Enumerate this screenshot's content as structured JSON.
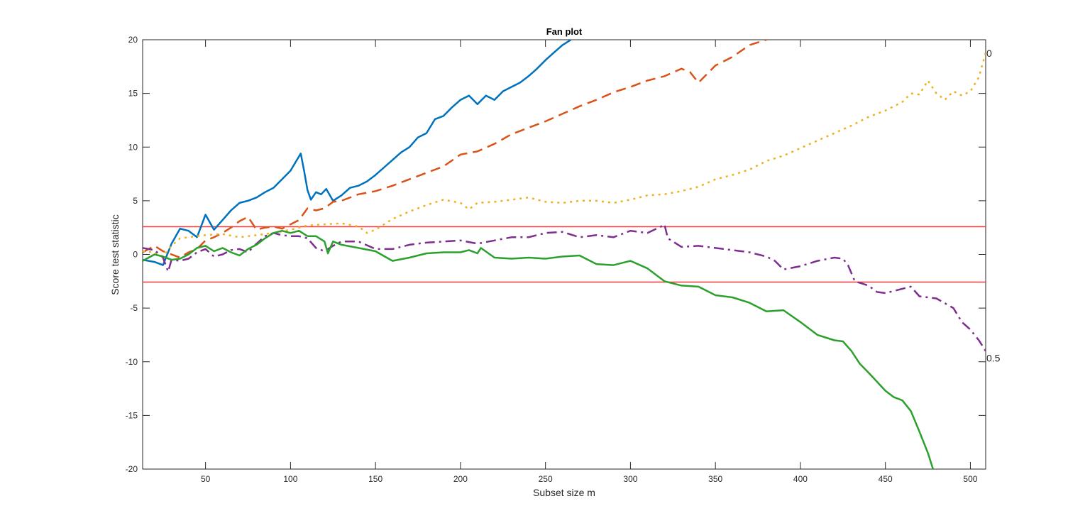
{
  "chart_data": {
    "type": "line",
    "title": "Fan plot",
    "xlabel": "Subset size m",
    "ylabel": "Score test statistic",
    "xlim": [
      13,
      509
    ],
    "ylim": [
      -20,
      20
    ],
    "xticks": [
      50,
      100,
      150,
      200,
      250,
      300,
      350,
      400,
      450,
      500
    ],
    "yticks": [
      -20,
      -15,
      -10,
      -5,
      0,
      5,
      10,
      15,
      20
    ],
    "grid": false,
    "legend": "none",
    "reference_lines": [
      {
        "name": "upper-band",
        "y": 2.58,
        "color": "#ff0000"
      },
      {
        "name": "lower-band",
        "y": -2.58,
        "color": "#ff0000"
      }
    ],
    "curve_labels": [
      {
        "text": "0",
        "x": 509,
        "y": 18.8
      },
      {
        "text": "0.5",
        "x": 509,
        "y": -9.6
      }
    ],
    "series": [
      {
        "name": "lambda-1",
        "color": "#0072bd",
        "style": "solid",
        "x": [
          13,
          20,
          25,
          30,
          35,
          40,
          45,
          50,
          55,
          60,
          65,
          70,
          75,
          80,
          85,
          90,
          95,
          100,
          103,
          106,
          108,
          110,
          112,
          115,
          118,
          121,
          125,
          130,
          135,
          140,
          145,
          150,
          155,
          160,
          165,
          170,
          175,
          180,
          185,
          190,
          195,
          200,
          205,
          210,
          215,
          220,
          225,
          230,
          235,
          240,
          245,
          250,
          255,
          260,
          265
        ],
        "values": [
          -0.5,
          -0.7,
          -1.0,
          1.0,
          2.4,
          2.2,
          1.6,
          3.7,
          2.3,
          3.2,
          4.1,
          4.8,
          5.0,
          5.3,
          5.8,
          6.2,
          7.0,
          7.8,
          8.6,
          9.4,
          7.8,
          6.0,
          5.1,
          5.8,
          5.6,
          6.1,
          5.0,
          5.5,
          6.2,
          6.4,
          6.8,
          7.4,
          8.1,
          8.8,
          9.5,
          10.0,
          10.9,
          11.3,
          12.6,
          12.9,
          13.7,
          14.4,
          14.8,
          14.0,
          14.8,
          14.4,
          15.2,
          15.6,
          16.0,
          16.6,
          17.3,
          18.1,
          18.8,
          19.5,
          20.0
        ]
      },
      {
        "name": "lambda-0.5-neg",
        "color": "#d95319",
        "style": "dashed",
        "x": [
          13,
          20,
          25,
          30,
          35,
          40,
          45,
          50,
          55,
          60,
          65,
          70,
          75,
          80,
          85,
          90,
          95,
          100,
          105,
          110,
          115,
          120,
          125,
          130,
          135,
          140,
          150,
          160,
          170,
          180,
          190,
          200,
          210,
          220,
          230,
          240,
          250,
          260,
          270,
          280,
          290,
          300,
          310,
          320,
          330,
          335,
          340,
          350,
          360,
          370,
          380
        ],
        "values": [
          0.2,
          0.8,
          0.3,
          0.0,
          -0.3,
          0.2,
          0.5,
          1.3,
          1.6,
          2.0,
          2.5,
          3.1,
          3.5,
          2.3,
          2.5,
          2.6,
          2.4,
          2.8,
          3.2,
          4.3,
          4.1,
          4.3,
          4.9,
          5.0,
          5.3,
          5.6,
          5.9,
          6.4,
          7.0,
          7.6,
          8.2,
          9.3,
          9.6,
          10.3,
          11.2,
          11.8,
          12.4,
          13.1,
          13.8,
          14.4,
          15.1,
          15.6,
          16.2,
          16.6,
          17.3,
          17.0,
          16.0,
          17.6,
          18.4,
          19.5,
          20.0
        ]
      },
      {
        "name": "lambda-0",
        "color": "#edb120",
        "style": "dotted",
        "x": [
          13,
          20,
          25,
          30,
          35,
          40,
          50,
          60,
          70,
          80,
          90,
          100,
          110,
          120,
          130,
          140,
          145,
          150,
          160,
          170,
          180,
          190,
          200,
          205,
          210,
          220,
          230,
          240,
          250,
          260,
          270,
          280,
          290,
          300,
          310,
          320,
          330,
          340,
          350,
          360,
          370,
          380,
          390,
          400,
          410,
          420,
          430,
          440,
          450,
          460,
          465,
          470,
          475,
          480,
          485,
          490,
          495,
          500,
          505,
          509
        ],
        "values": [
          0.3,
          0.2,
          -0.2,
          0.8,
          1.5,
          1.6,
          1.8,
          1.9,
          1.6,
          1.8,
          2.0,
          2.3,
          2.7,
          2.8,
          2.9,
          2.6,
          2.0,
          2.3,
          3.3,
          4.0,
          4.6,
          5.1,
          4.8,
          4.2,
          4.8,
          4.9,
          5.1,
          5.3,
          4.9,
          4.8,
          5.0,
          5.0,
          4.8,
          5.1,
          5.5,
          5.6,
          5.9,
          6.3,
          7.0,
          7.4,
          7.9,
          8.7,
          9.2,
          9.9,
          10.6,
          11.3,
          12.0,
          12.8,
          13.4,
          14.2,
          15.0,
          14.9,
          16.2,
          15.0,
          14.4,
          15.2,
          14.8,
          15.2,
          16.5,
          18.8
        ]
      },
      {
        "name": "lambda-0.5",
        "color": "#7e2f8e",
        "style": "dashdot",
        "x": [
          13,
          20,
          25,
          28,
          30,
          35,
          40,
          45,
          50,
          55,
          60,
          65,
          70,
          75,
          80,
          85,
          90,
          95,
          100,
          105,
          110,
          115,
          120,
          125,
          130,
          140,
          150,
          160,
          170,
          180,
          190,
          200,
          210,
          220,
          230,
          240,
          250,
          260,
          270,
          280,
          290,
          300,
          310,
          318,
          320,
          322,
          330,
          340,
          350,
          360,
          370,
          380,
          385,
          390,
          400,
          410,
          420,
          425,
          428,
          432,
          440,
          445,
          450,
          460,
          465,
          470,
          480,
          490,
          495,
          500,
          505,
          509
        ],
        "values": [
          0.6,
          0.4,
          -0.3,
          -1.6,
          -0.5,
          -0.6,
          -0.4,
          0.2,
          0.5,
          -0.2,
          0.0,
          0.4,
          0.5,
          0.2,
          1.0,
          1.7,
          2.0,
          1.8,
          1.7,
          1.7,
          1.5,
          0.6,
          0.3,
          0.8,
          1.2,
          1.2,
          0.5,
          0.5,
          0.9,
          1.1,
          1.2,
          1.3,
          1.0,
          1.3,
          1.6,
          1.6,
          2.0,
          2.1,
          1.6,
          1.8,
          1.6,
          2.2,
          2.0,
          2.6,
          2.8,
          1.5,
          0.7,
          0.8,
          0.6,
          0.4,
          0.2,
          -0.2,
          -0.6,
          -1.4,
          -1.1,
          -0.6,
          -0.3,
          -0.4,
          -1.0,
          -2.5,
          -2.9,
          -3.5,
          -3.6,
          -3.2,
          -3.0,
          -3.9,
          -4.1,
          -5.0,
          -6.3,
          -7.0,
          -8.0,
          -9.0
        ]
      },
      {
        "name": "lambda-1-neg",
        "color": "#2ca02c",
        "style": "solid",
        "x": [
          13,
          20,
          25,
          30,
          35,
          40,
          45,
          50,
          55,
          60,
          65,
          70,
          75,
          80,
          85,
          90,
          95,
          100,
          105,
          110,
          115,
          120,
          122,
          125,
          130,
          140,
          150,
          160,
          170,
          180,
          190,
          200,
          205,
          210,
          212,
          220,
          230,
          240,
          250,
          260,
          270,
          280,
          290,
          300,
          310,
          320,
          330,
          340,
          350,
          360,
          370,
          380,
          390,
          400,
          410,
          420,
          425,
          430,
          435,
          440,
          450,
          455,
          460,
          465,
          470,
          475,
          478
        ],
        "values": [
          -0.6,
          0.0,
          -0.2,
          -0.5,
          -0.4,
          0.0,
          0.6,
          0.8,
          0.3,
          0.6,
          0.2,
          -0.1,
          0.5,
          0.9,
          1.5,
          2.0,
          2.2,
          2.0,
          2.2,
          1.7,
          1.7,
          1.2,
          0.1,
          1.2,
          0.9,
          0.6,
          0.3,
          -0.6,
          -0.3,
          0.1,
          0.2,
          0.2,
          0.4,
          0.1,
          0.6,
          -0.3,
          -0.4,
          -0.3,
          -0.4,
          -0.2,
          -0.1,
          -0.9,
          -1.0,
          -0.6,
          -1.3,
          -2.5,
          -2.9,
          -3.0,
          -3.8,
          -4.0,
          -4.5,
          -5.3,
          -5.2,
          -6.3,
          -7.5,
          -8.0,
          -8.1,
          -9.0,
          -10.2,
          -11.0,
          -12.7,
          -13.3,
          -13.6,
          -14.6,
          -16.5,
          -18.5,
          -20.0
        ]
      }
    ]
  },
  "figure": {
    "background": "#ffffff",
    "axes_color": "#262626",
    "band_color": "#ff3333"
  }
}
